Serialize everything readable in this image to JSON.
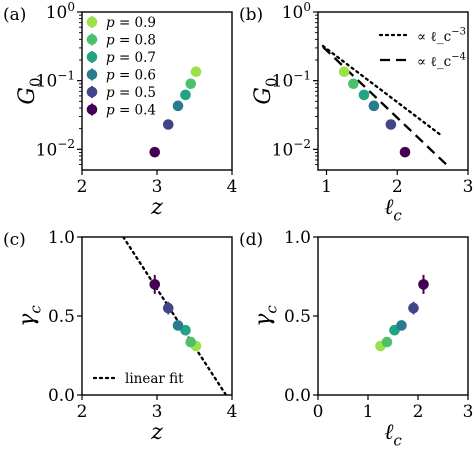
{
  "chart_data": [
    {
      "panel": "(a)",
      "type": "scatter",
      "xlabel": "z",
      "ylabel": "G0",
      "xlim": [
        2,
        4
      ],
      "ylim": [
        0.005,
        1
      ],
      "yscale": "log",
      "xticks": [
        "2",
        "3",
        "4"
      ],
      "yticks": [
        "10^-2",
        "10^-1",
        "10^0"
      ],
      "legend": {
        "placement": "top-left",
        "entries": [
          "p = 0.9",
          "p = 0.8",
          "p = 0.7",
          "p = 0.6",
          "p = 0.5",
          "p = 0.4"
        ]
      },
      "series": [
        {
          "name": "p = 0.9",
          "color": "#9be24a",
          "x": [
            3.52
          ],
          "y": [
            0.135
          ],
          "yerr": [
            0.015
          ]
        },
        {
          "name": "p = 0.8",
          "color": "#4dc06a",
          "x": [
            3.45
          ],
          "y": [
            0.09
          ],
          "yerr": [
            0.01
          ]
        },
        {
          "name": "p = 0.7",
          "color": "#22a384",
          "x": [
            3.38
          ],
          "y": [
            0.062
          ],
          "yerr": [
            0.006
          ]
        },
        {
          "name": "p = 0.6",
          "color": "#2b7b8e",
          "x": [
            3.28
          ],
          "y": [
            0.043
          ],
          "yerr": [
            0.004
          ]
        },
        {
          "name": "p = 0.5",
          "color": "#414487",
          "x": [
            3.15
          ],
          "y": [
            0.023
          ],
          "yerr": [
            0.002
          ]
        },
        {
          "name": "p = 0.4",
          "color": "#440154",
          "x": [
            2.97
          ],
          "y": [
            0.0091
          ],
          "yerr": [
            0.0013
          ]
        }
      ]
    },
    {
      "panel": "(b)",
      "type": "scatter",
      "xlabel": "ℓ_c",
      "ylabel": "G0",
      "xlim": [
        0.88,
        3
      ],
      "ylim": [
        0.005,
        1
      ],
      "yscale": "log",
      "xticks": [
        "1",
        "2",
        "3"
      ],
      "yticks": [
        "10^-2",
        "10^-1",
        "10^0"
      ],
      "legend": {
        "placement": "top-right",
        "entries": [
          "∝ ℓ_c^-3",
          "∝ ℓ_c^-4"
        ]
      },
      "series": [
        {
          "name": "p = 0.9",
          "color": "#9be24a",
          "x": [
            1.25
          ],
          "y": [
            0.135
          ],
          "yerr": [
            0.015
          ]
        },
        {
          "name": "p = 0.8",
          "color": "#4dc06a",
          "x": [
            1.38
          ],
          "y": [
            0.09
          ],
          "yerr": [
            0.01
          ]
        },
        {
          "name": "p = 0.7",
          "color": "#22a384",
          "x": [
            1.53
          ],
          "y": [
            0.062
          ],
          "yerr": [
            0.006
          ]
        },
        {
          "name": "p = 0.6",
          "color": "#2b7b8e",
          "x": [
            1.67
          ],
          "y": [
            0.043
          ],
          "yerr": [
            0.004
          ]
        },
        {
          "name": "p = 0.5",
          "color": "#414487",
          "x": [
            1.91
          ],
          "y": [
            0.023
          ],
          "yerr": [
            0.002
          ]
        },
        {
          "name": "p = 0.4",
          "color": "#440154",
          "x": [
            2.11
          ],
          "y": [
            0.0091
          ],
          "yerr": [
            0.0013
          ]
        }
      ],
      "lines": [
        {
          "name": "∝ ℓ_c^-3",
          "style": "dotted",
          "x": [
            0.95,
            2.6
          ],
          "y": [
            0.32,
            0.0166
          ]
        },
        {
          "name": "∝ ℓ_c^-4",
          "style": "dashed",
          "x": [
            0.95,
            2.75
          ],
          "y": [
            0.31,
            0.0053
          ]
        }
      ]
    },
    {
      "panel": "(c)",
      "type": "scatter",
      "xlabel": "z",
      "ylabel": "γ_c",
      "xlim": [
        2,
        4
      ],
      "ylim": [
        0,
        1
      ],
      "xticks": [
        "2",
        "3",
        "4"
      ],
      "yticks": [
        "0.0",
        "0.5",
        "1.0"
      ],
      "legend": {
        "placement": "bottom-left",
        "entries": [
          "linear fit"
        ]
      },
      "series": [
        {
          "name": "p = 0.9",
          "color": "#9be24a",
          "x": [
            3.52
          ],
          "y": [
            0.31
          ],
          "yerr": [
            0.02
          ]
        },
        {
          "name": "p = 0.8",
          "color": "#4dc06a",
          "x": [
            3.45
          ],
          "y": [
            0.335
          ],
          "yerr": [
            0.02
          ]
        },
        {
          "name": "p = 0.7",
          "color": "#22a384",
          "x": [
            3.38
          ],
          "y": [
            0.41
          ],
          "yerr": [
            0.02
          ]
        },
        {
          "name": "p = 0.6",
          "color": "#2b7b8e",
          "x": [
            3.28
          ],
          "y": [
            0.44
          ],
          "yerr": [
            0.02
          ]
        },
        {
          "name": "p = 0.5",
          "color": "#414487",
          "x": [
            3.15
          ],
          "y": [
            0.55
          ],
          "yerr": [
            0.04
          ]
        },
        {
          "name": "p = 0.4",
          "color": "#440154",
          "x": [
            2.97
          ],
          "y": [
            0.7
          ],
          "yerr": [
            0.06
          ]
        }
      ],
      "lines": [
        {
          "name": "linear fit",
          "style": "dotted",
          "x": [
            2.55,
            3.92
          ],
          "y": [
            1.0,
            0.0
          ]
        }
      ]
    },
    {
      "panel": "(d)",
      "type": "scatter",
      "xlabel": "ℓ_c",
      "ylabel": "γ_c",
      "xlim": [
        0,
        3
      ],
      "ylim": [
        0,
        1
      ],
      "xticks": [
        "0",
        "1",
        "2",
        "3"
      ],
      "yticks": [
        "0.0",
        "0.5",
        "1.0"
      ],
      "series": [
        {
          "name": "p = 0.9",
          "color": "#9be24a",
          "x": [
            1.25
          ],
          "y": [
            0.31
          ],
          "yerr": [
            0.02
          ]
        },
        {
          "name": "p = 0.8",
          "color": "#4dc06a",
          "x": [
            1.38
          ],
          "y": [
            0.335
          ],
          "yerr": [
            0.02
          ]
        },
        {
          "name": "p = 0.7",
          "color": "#22a384",
          "x": [
            1.53
          ],
          "y": [
            0.41
          ],
          "yerr": [
            0.02
          ]
        },
        {
          "name": "p = 0.6",
          "color": "#2b7b8e",
          "x": [
            1.67
          ],
          "y": [
            0.44
          ],
          "yerr": [
            0.02
          ]
        },
        {
          "name": "p = 0.5",
          "color": "#414487",
          "x": [
            1.91
          ],
          "y": [
            0.55
          ],
          "yerr": [
            0.04
          ]
        },
        {
          "name": "p = 0.4",
          "color": "#440154",
          "x": [
            2.11
          ],
          "y": [
            0.7
          ],
          "yerr": [
            0.06
          ]
        }
      ]
    }
  ]
}
